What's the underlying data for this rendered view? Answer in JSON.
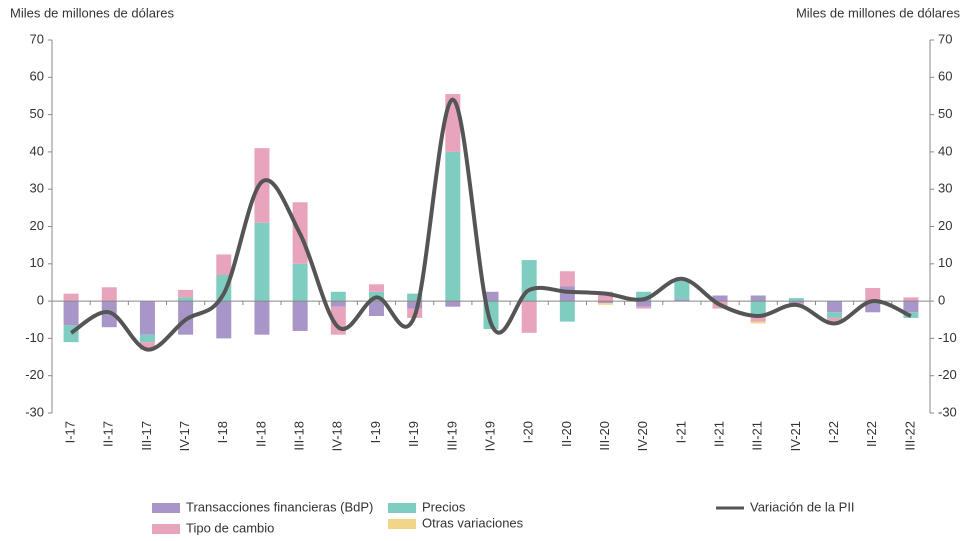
{
  "chart_data": {
    "type": "bar",
    "y_axis_label": "Miles de millones de dólares",
    "y2_axis_label": "Miles de millones de dólares",
    "categories": [
      "I-17",
      "II-17",
      "III-17",
      "IV-17",
      "I-18",
      "II-18",
      "III-18",
      "IV-18",
      "I-19",
      "II-19",
      "III-19",
      "IV-19",
      "I-20",
      "II-20",
      "III-20",
      "IV-20",
      "I-21",
      "II-21",
      "III-21",
      "IV-21",
      "I-22",
      "II-22",
      "III-22"
    ],
    "series": [
      {
        "name": "Transacciones financieras (BdP)",
        "color": "#a996c8",
        "values": [
          -6.5,
          -7,
          -9,
          -9,
          -10,
          -9,
          -8,
          -1.5,
          -4,
          -2,
          -1.5,
          2.5,
          0,
          4,
          -0.5,
          -1.5,
          0.5,
          1.5,
          1.5,
          -0.5,
          -3,
          -3,
          -3
        ]
      },
      {
        "name": "Precios",
        "color": "#7fcdc0",
        "values": [
          -4.5,
          0,
          -2,
          1,
          7,
          21,
          10,
          2.5,
          2.5,
          2,
          40,
          -7.5,
          11,
          -5.5,
          0,
          2.5,
          5,
          0,
          -4,
          0.8,
          -1.5,
          0,
          -1.5
        ]
      },
      {
        "name": "Tipo de cambio",
        "color": "#e8a3bd",
        "values": [
          2,
          3.7,
          -2,
          2,
          5.5,
          20,
          16.5,
          -7.5,
          2,
          -2.5,
          15.5,
          0,
          -8.5,
          4,
          2.5,
          -0.5,
          0,
          -2,
          -1.5,
          -1,
          -1.5,
          3.5,
          1
        ]
      },
      {
        "name": "Otras variaciones",
        "color": "#f2d48a",
        "values": [
          0,
          0,
          0,
          0,
          0,
          0,
          0,
          0,
          0,
          0,
          0,
          0,
          0,
          0,
          -0.5,
          0,
          0,
          0,
          -0.5,
          0,
          0,
          0,
          0
        ]
      },
      {
        "name": "Variación de la PII",
        "type": "line",
        "color": "#555555",
        "values": [
          -8.5,
          -3,
          -13,
          -5,
          2,
          32,
          18,
          -7,
          1,
          -4,
          54,
          -6,
          3,
          2.5,
          2,
          0.5,
          6,
          -1,
          -4,
          -1,
          -6,
          0,
          -4
        ]
      }
    ],
    "ylim": [
      -30,
      70
    ],
    "yticks": [
      -30,
      -20,
      -10,
      0,
      10,
      20,
      30,
      40,
      50,
      60,
      70
    ],
    "y2lim": [
      -30,
      70
    ],
    "y2ticks": [
      -30,
      -20,
      -10,
      0,
      10,
      20,
      30,
      40,
      50,
      60,
      70
    ]
  }
}
